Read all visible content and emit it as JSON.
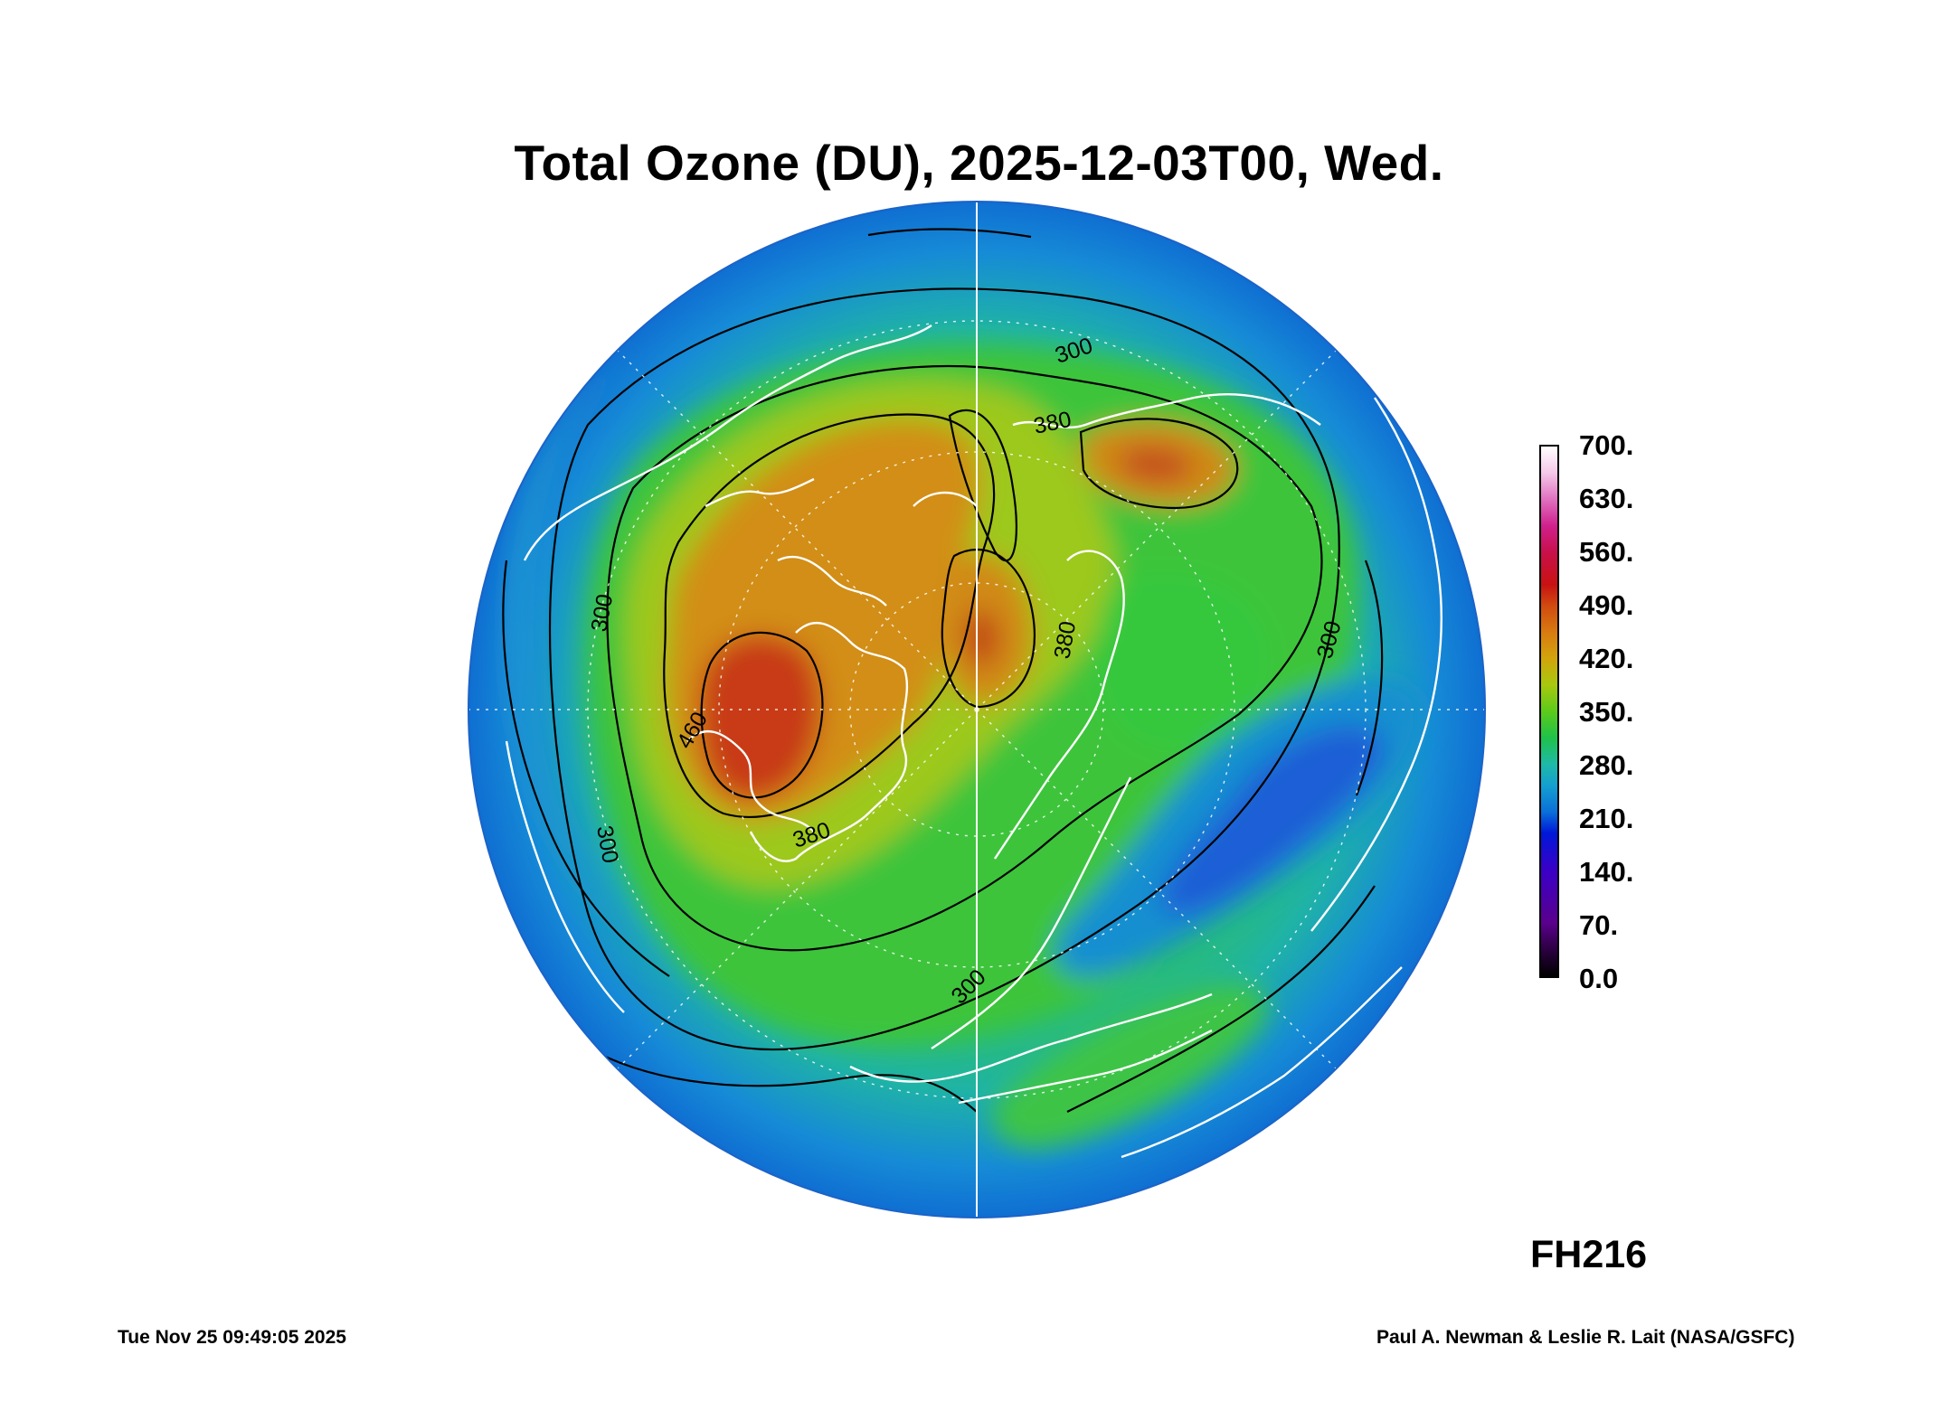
{
  "title": "Total Ozone (DU), 2025-12-03T00, Wed.",
  "forecast_hour": "FH216",
  "timestamp": "Tue Nov 25 09:49:05 2025",
  "credit": "Paul A. Newman & Leslie R. Lait (NASA/GSFC)",
  "colorbar": {
    "labels": [
      "700.",
      "630.",
      "560.",
      "490.",
      "420.",
      "350.",
      "280.",
      "210.",
      "140.",
      "70.",
      "0.0"
    ],
    "min": 0,
    "max": 700,
    "colors": [
      "#000000",
      "#5a008c",
      "#0018d8",
      "#14a0d0",
      "#1fc24a",
      "#a8c80e",
      "#d87a10",
      "#c81212",
      "#d0208c",
      "#ffffff"
    ]
  },
  "map": {
    "projection": "north polar stereographic",
    "contour_labels": [
      "300",
      "380",
      "300",
      "380",
      "460",
      "380",
      "300",
      "300",
      "300"
    ]
  }
}
